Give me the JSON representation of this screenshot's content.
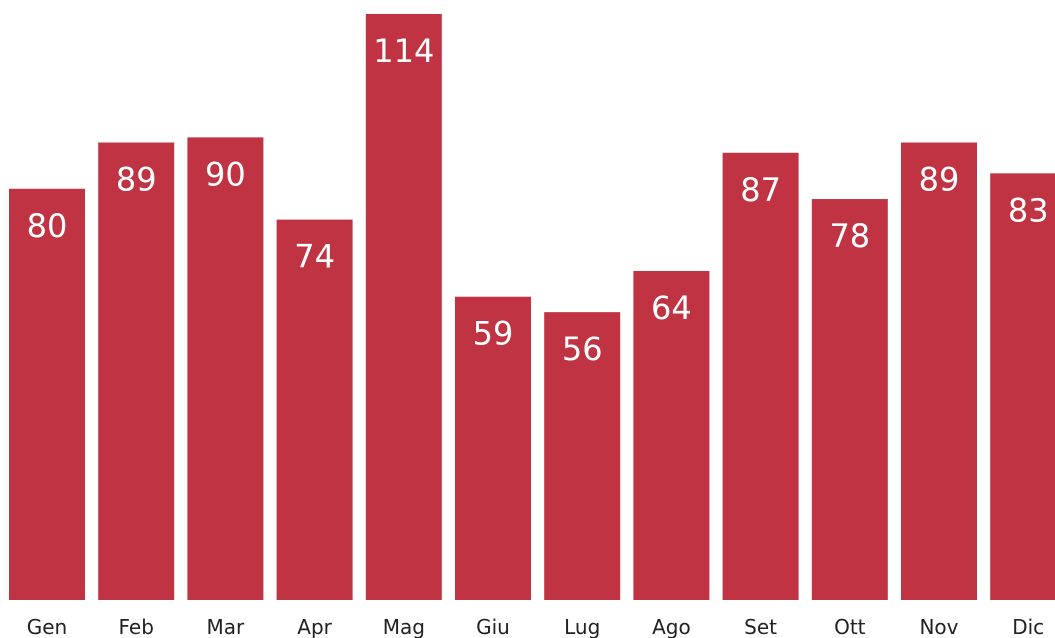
{
  "chart_data": {
    "type": "bar",
    "categories": [
      "Gen",
      "Feb",
      "Mar",
      "Apr",
      "Mag",
      "Giu",
      "Lug",
      "Ago",
      "Set",
      "Ott",
      "Nov",
      "Dic"
    ],
    "values": [
      80,
      89,
      90,
      74,
      114,
      59,
      56,
      64,
      87,
      78,
      89,
      83
    ],
    "color": "#c03342"
  }
}
